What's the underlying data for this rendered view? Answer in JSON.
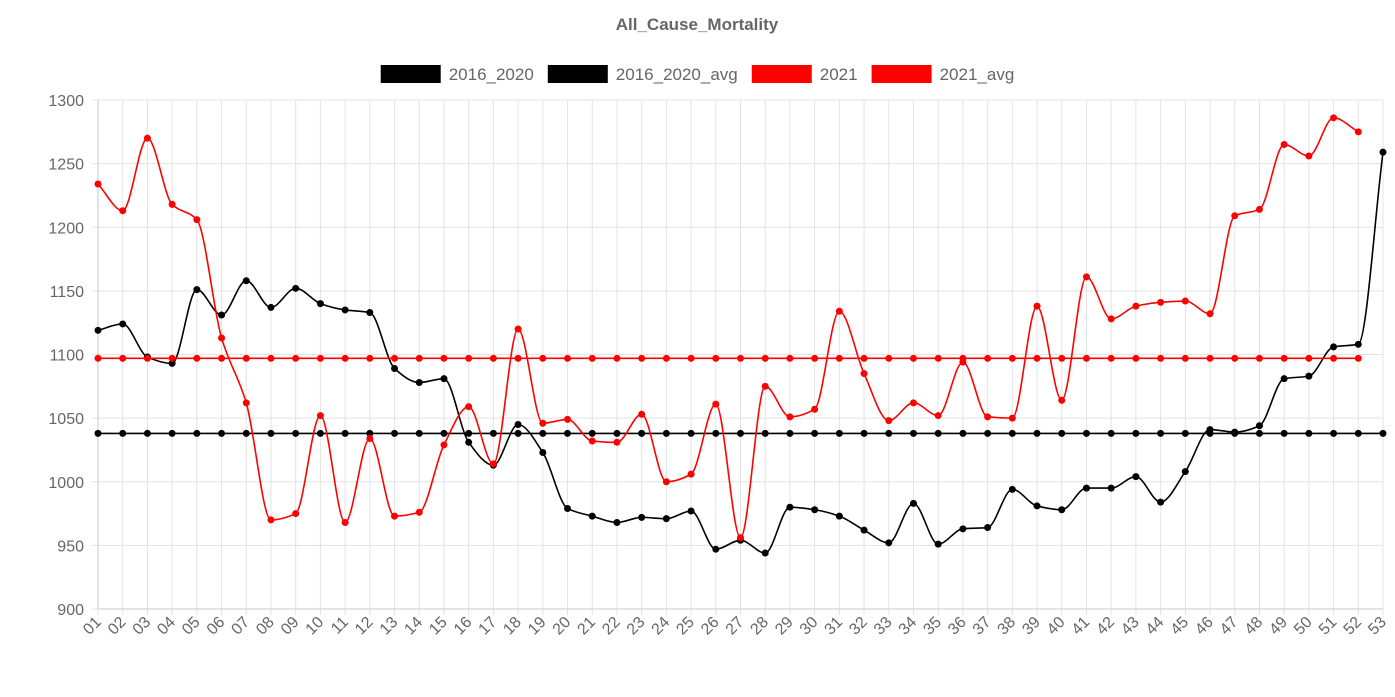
{
  "chart_data": {
    "type": "line",
    "title": "All_Cause_Mortality",
    "xlabel": "",
    "ylabel": "",
    "ylim": [
      900,
      1300
    ],
    "yticks": [
      900,
      950,
      1000,
      1050,
      1100,
      1150,
      1200,
      1250,
      1300
    ],
    "grid": true,
    "legend_position": "top",
    "categories": [
      "01",
      "02",
      "03",
      "04",
      "05",
      "06",
      "07",
      "08",
      "09",
      "10",
      "11",
      "12",
      "13",
      "14",
      "15",
      "16",
      "17",
      "18",
      "19",
      "20",
      "21",
      "22",
      "23",
      "24",
      "25",
      "26",
      "27",
      "28",
      "29",
      "30",
      "31",
      "32",
      "33",
      "34",
      "35",
      "36",
      "37",
      "38",
      "39",
      "40",
      "41",
      "42",
      "43",
      "44",
      "45",
      "46",
      "47",
      "48",
      "49",
      "50",
      "51",
      "52",
      "53"
    ],
    "series": [
      {
        "name": "2016_2020",
        "color": "#000000",
        "values": [
          1119,
          1124,
          1098,
          1093,
          1151,
          1131,
          1158,
          1137,
          1152,
          1140,
          1135,
          1133,
          1089,
          1078,
          1081,
          1031,
          1013,
          1045,
          1023,
          979,
          973,
          968,
          972,
          971,
          977,
          947,
          954,
          944,
          980,
          978,
          973,
          962,
          952,
          983,
          951,
          963,
          964,
          994,
          981,
          978,
          995,
          995,
          1004,
          984,
          1008,
          1041,
          1039,
          1044,
          1081,
          1083,
          1106,
          1108,
          1259
        ]
      },
      {
        "name": "2016_2020_avg",
        "color": "#000000",
        "values": [
          1038,
          1038,
          1038,
          1038,
          1038,
          1038,
          1038,
          1038,
          1038,
          1038,
          1038,
          1038,
          1038,
          1038,
          1038,
          1038,
          1038,
          1038,
          1038,
          1038,
          1038,
          1038,
          1038,
          1038,
          1038,
          1038,
          1038,
          1038,
          1038,
          1038,
          1038,
          1038,
          1038,
          1038,
          1038,
          1038,
          1038,
          1038,
          1038,
          1038,
          1038,
          1038,
          1038,
          1038,
          1038,
          1038,
          1038,
          1038,
          1038,
          1038,
          1038,
          1038,
          1038
        ]
      },
      {
        "name": "2021",
        "color": "#ff0000",
        "values": [
          1234,
          1213,
          1270,
          1218,
          1206,
          1113,
          1062,
          970,
          975,
          1052,
          968,
          1034,
          973,
          976,
          1029,
          1059,
          1014,
          1120,
          1046,
          1049,
          1032,
          1031,
          1053,
          1000,
          1006,
          1061,
          956,
          1075,
          1051,
          1057,
          1134,
          1085,
          1048,
          1062,
          1052,
          1094,
          1051,
          1050,
          1138,
          1064,
          1161,
          1128,
          1138,
          1141,
          1142,
          1132,
          1209,
          1214,
          1265,
          1256,
          1286,
          1275,
          null
        ]
      },
      {
        "name": "2021_avg",
        "color": "#ff0000",
        "values": [
          1097,
          1097,
          1097,
          1097,
          1097,
          1097,
          1097,
          1097,
          1097,
          1097,
          1097,
          1097,
          1097,
          1097,
          1097,
          1097,
          1097,
          1097,
          1097,
          1097,
          1097,
          1097,
          1097,
          1097,
          1097,
          1097,
          1097,
          1097,
          1097,
          1097,
          1097,
          1097,
          1097,
          1097,
          1097,
          1097,
          1097,
          1097,
          1097,
          1097,
          1097,
          1097,
          1097,
          1097,
          1097,
          1097,
          1097,
          1097,
          1097,
          1097,
          1097,
          1097,
          null
        ]
      }
    ]
  }
}
